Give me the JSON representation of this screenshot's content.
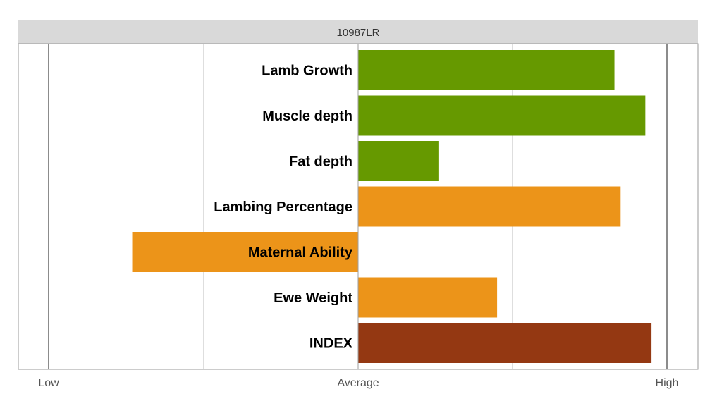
{
  "chart_data": {
    "type": "bar",
    "orientation": "horizontal",
    "title": "10987LR",
    "x_tick_labels": [
      "Low",
      "Average",
      "High"
    ],
    "xlim": [
      -1,
      1
    ],
    "grid": true,
    "categories": [
      "Lamb Growth",
      "Muscle depth",
      "Fat depth",
      "Lambing Percentage",
      "Maternal Ability",
      "Ewe Weight",
      "INDEX"
    ],
    "values": [
      0.83,
      0.93,
      0.26,
      0.85,
      -0.73,
      0.45,
      0.95
    ],
    "colors": [
      "#669900",
      "#669900",
      "#669900",
      "#ec9419",
      "#ec9419",
      "#ec9419",
      "#943812"
    ]
  }
}
